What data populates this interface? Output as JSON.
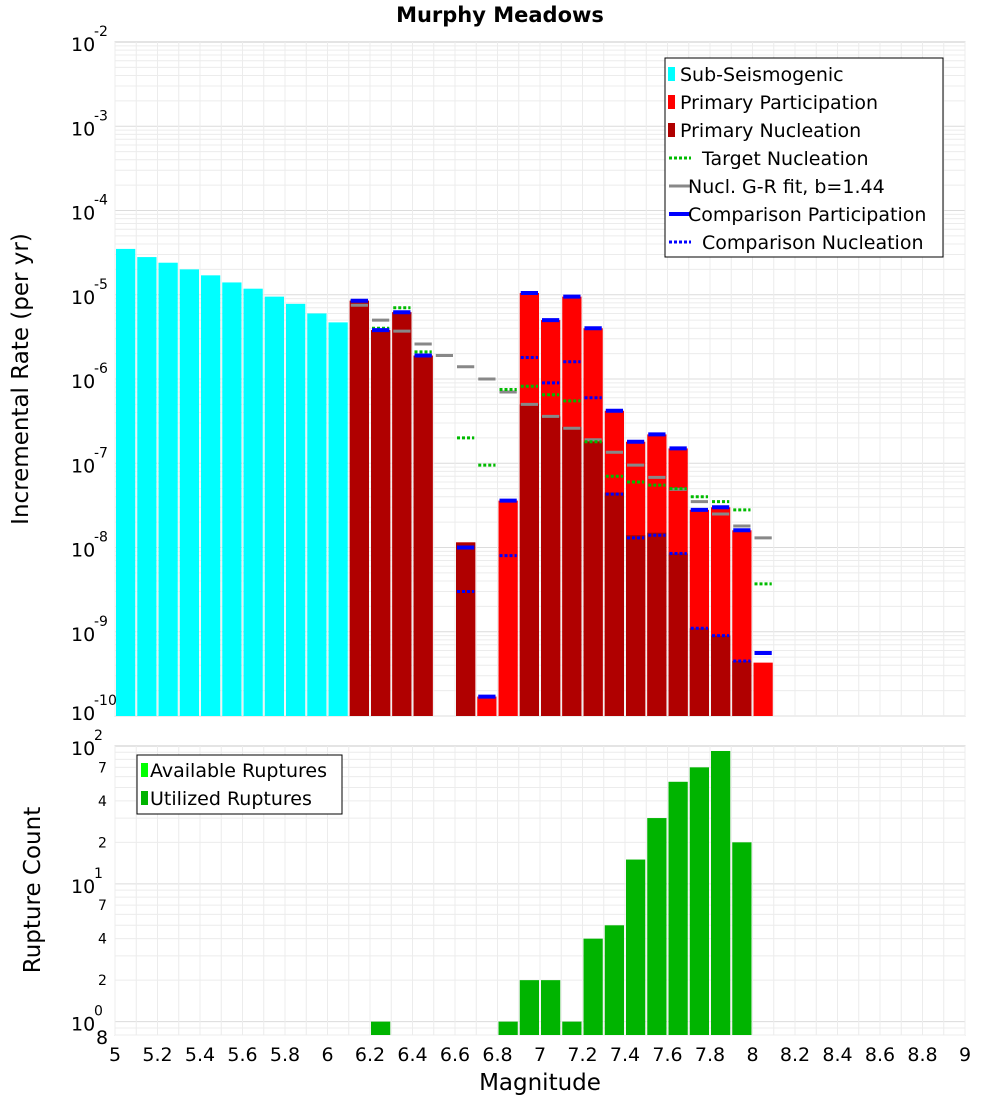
{
  "chart_data": [
    {
      "type": "bar",
      "title": "Murphy Meadows",
      "xlabel": "Magnitude",
      "ylabel": "Incremental Rate (per yr)",
      "yscale": "log",
      "xlim": [
        5,
        9
      ],
      "ylim": [
        1e-10,
        0.01
      ],
      "y_tick_labels": [
        {
          "base": "10",
          "exp": "-10"
        },
        {
          "base": "10",
          "exp": "-9"
        },
        {
          "base": "10",
          "exp": "-8"
        },
        {
          "base": "10",
          "exp": "-7"
        },
        {
          "base": "10",
          "exp": "-6"
        },
        {
          "base": "10",
          "exp": "-5"
        },
        {
          "base": "10",
          "exp": "-4"
        },
        {
          "base": "10",
          "exp": "-3"
        },
        {
          "base": "10",
          "exp": "-2"
        }
      ],
      "legend": [
        {
          "label": "Sub-Seismogenic",
          "color": "#00ffff",
          "style": "box"
        },
        {
          "label": "Primary Participation",
          "color": "#ff0000",
          "style": "box"
        },
        {
          "label": "Primary Nucleation",
          "color": "#b00000",
          "style": "box"
        },
        {
          "label": "Target Nucleation",
          "color": "#00bb00",
          "style": "dotted"
        },
        {
          "label": "Nucl. G-R fit, b=1.44",
          "color": "#888888",
          "style": "solid"
        },
        {
          "label": "Comparison Participation",
          "color": "#0000ff",
          "style": "solid"
        },
        {
          "label": "Comparison Nucleation",
          "color": "#0000ff",
          "style": "dotted"
        }
      ],
      "series": [
        {
          "name": "Sub-Seismogenic",
          "color": "#00ffff",
          "x": [
            5.05,
            5.15,
            5.25,
            5.35,
            5.45,
            5.55,
            5.65,
            5.75,
            5.85,
            5.95,
            6.05
          ],
          "values": [
            3.5e-05,
            2.8e-05,
            2.4e-05,
            2e-05,
            1.7e-05,
            1.4e-05,
            1.18e-05,
            9.5e-06,
            7.8e-06,
            6e-06,
            4.7e-06
          ]
        },
        {
          "name": "Primary Participation",
          "color": "#ff0000",
          "x": [
            6.15,
            6.25,
            6.35,
            6.45,
            6.65,
            6.75,
            6.85,
            6.95,
            7.05,
            7.15,
            7.25,
            7.35,
            7.45,
            7.55,
            7.65,
            7.75,
            7.85,
            7.95,
            8.05
          ],
          "values": [
            8.5e-06,
            3.8e-06,
            6.2e-06,
            1.9e-06,
            1.15e-08,
            1.7e-10,
            3.6e-08,
            1.05e-05,
            5e-06,
            9.5e-06,
            4e-06,
            4.2e-07,
            1.8e-07,
            2.2e-07,
            1.5e-07,
            2.8e-08,
            3e-08,
            1.6e-08,
            4.3e-10
          ]
        },
        {
          "name": "Primary Nucleation",
          "color": "#b00000",
          "x": [
            6.15,
            6.25,
            6.35,
            6.45,
            6.65,
            6.95,
            7.05,
            7.15,
            7.25,
            7.35,
            7.45,
            7.55,
            7.65,
            7.75,
            7.85,
            7.95
          ],
          "values": [
            8.5e-06,
            3.8e-06,
            6.2e-06,
            1.9e-06,
            1.15e-08,
            5e-07,
            3.6e-07,
            2.7e-07,
            1.8e-07,
            4.5e-08,
            1.4e-08,
            1.5e-08,
            8.5e-09,
            1.1e-09,
            9e-10,
            4.5e-10
          ]
        },
        {
          "name": "Target Nucleation",
          "color": "#00bb00",
          "style": "dotted",
          "x": [
            6.15,
            6.25,
            6.35,
            6.45,
            6.65,
            6.75,
            6.85,
            6.95,
            7.05,
            7.15,
            7.25,
            7.35,
            7.45,
            7.55,
            7.65,
            7.75,
            7.85,
            7.95,
            8.05
          ],
          "values": [
            8.5e-06,
            4e-06,
            7e-06,
            2.1e-06,
            2e-07,
            9.5e-08,
            7.5e-07,
            8.2e-07,
            6.5e-07,
            5.5e-07,
            1.8e-07,
            7e-08,
            6e-08,
            5.5e-08,
            5e-08,
            4e-08,
            3.5e-08,
            2.8e-08,
            3.7e-09
          ]
        },
        {
          "name": "Nucl. G-R fit, b=1.44",
          "color": "#888888",
          "style": "solid",
          "x": [
            6.15,
            6.25,
            6.35,
            6.45,
            6.55,
            6.65,
            6.75,
            6.85,
            6.95,
            7.05,
            7.15,
            7.25,
            7.35,
            7.45,
            7.55,
            7.65,
            7.75,
            7.85,
            7.95,
            8.05
          ],
          "values": [
            7.5e-06,
            5e-06,
            3.7e-06,
            2.6e-06,
            1.9e-06,
            1.4e-06,
            1e-06,
            7e-07,
            5e-07,
            3.6e-07,
            2.6e-07,
            1.9e-07,
            1.35e-07,
            9.5e-08,
            6.8e-08,
            4.9e-08,
            3.5e-08,
            2.5e-08,
            1.8e-08,
            1.3e-08
          ]
        },
        {
          "name": "Comparison Participation",
          "color": "#0000ff",
          "style": "solid",
          "x": [
            6.15,
            6.25,
            6.35,
            6.45,
            6.65,
            6.75,
            6.85,
            6.95,
            7.05,
            7.15,
            7.25,
            7.35,
            7.45,
            7.55,
            7.65,
            7.75,
            7.85,
            7.95,
            8.05
          ],
          "values": [
            8.5e-06,
            3.8e-06,
            6.2e-06,
            1.9e-06,
            1e-08,
            1.7e-10,
            3.6e-08,
            1.05e-05,
            5e-06,
            9.5e-06,
            4e-06,
            4.2e-07,
            1.8e-07,
            2.2e-07,
            1.5e-07,
            2.8e-08,
            3e-08,
            1.6e-08,
            5.6e-10
          ]
        },
        {
          "name": "Comparison Nucleation",
          "color": "#0000ff",
          "style": "dotted",
          "x": [
            6.15,
            6.25,
            6.35,
            6.45,
            6.65,
            6.85,
            6.95,
            7.05,
            7.15,
            7.25,
            7.35,
            7.45,
            7.55,
            7.65,
            7.75,
            7.85,
            7.95
          ],
          "values": [
            8.5e-06,
            3.8e-06,
            6.2e-06,
            1.9e-06,
            3e-09,
            8e-09,
            1.8e-06,
            9e-07,
            1.6e-06,
            6e-07,
            4.3e-08,
            1.3e-08,
            1.4e-08,
            8.5e-09,
            1.1e-09,
            9e-10,
            4.5e-10
          ]
        }
      ]
    },
    {
      "type": "bar",
      "title": "",
      "xlabel": "Magnitude",
      "ylabel": "Rupture Count",
      "yscale": "log",
      "xlim": [
        5,
        9
      ],
      "ylim": [
        0.8,
        100
      ],
      "x_ticks": [
        "5",
        "5.2",
        "5.4",
        "5.6",
        "5.8",
        "6",
        "6.2",
        "6.4",
        "6.6",
        "6.8",
        "7",
        "7.2",
        "7.4",
        "7.6",
        "7.8",
        "8",
        "8.2",
        "8.4",
        "8.6",
        "8.8",
        "9"
      ],
      "y_tick_labels": [
        {
          "value": 1,
          "base": "10",
          "exp": "0"
        },
        {
          "value": 10,
          "base": "10",
          "exp": "1"
        },
        {
          "value": 100,
          "base": "10",
          "exp": "2"
        }
      ],
      "y_minor_labels": [
        {
          "value": 0.8,
          "label": "8"
        },
        {
          "value": 2,
          "label": "2"
        },
        {
          "value": 4,
          "label": "4"
        },
        {
          "value": 7,
          "label": "7"
        },
        {
          "value": 20,
          "label": "2"
        },
        {
          "value": 40,
          "label": "4"
        },
        {
          "value": 70,
          "label": "7"
        }
      ],
      "legend": [
        {
          "label": "Available Ruptures",
          "color": "#00ff00",
          "style": "box"
        },
        {
          "label": "Utilized Ruptures",
          "color": "#00b400",
          "style": "box"
        }
      ],
      "series": [
        {
          "name": "Utilized Ruptures",
          "color": "#00b400",
          "x": [
            6.25,
            6.85,
            6.95,
            7.05,
            7.15,
            7.25,
            7.35,
            7.45,
            7.55,
            7.65,
            7.75,
            7.85,
            7.95
          ],
          "values": [
            1,
            1,
            2,
            2,
            1,
            4,
            5,
            15,
            30,
            55,
            70,
            92,
            20
          ]
        }
      ]
    }
  ]
}
